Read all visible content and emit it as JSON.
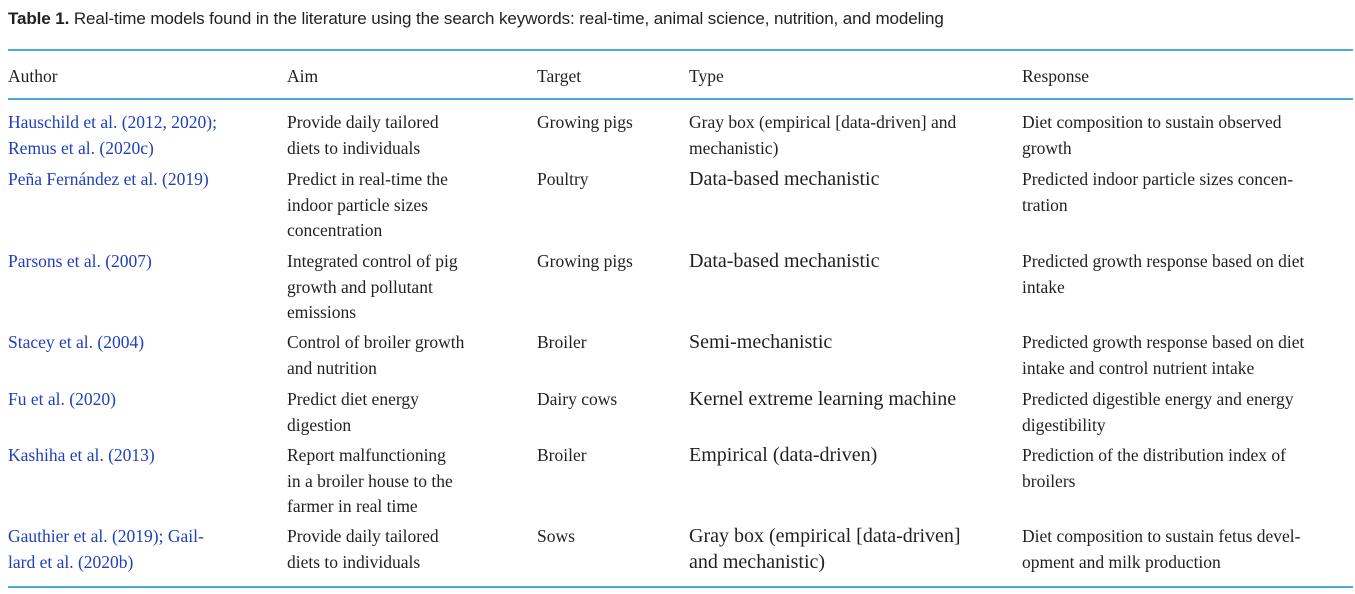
{
  "caption": {
    "label": "Table 1.",
    "text": "Real-time models found in the literature using the search keywords: real-time, animal science, nutrition, and modeling"
  },
  "headers": {
    "author": "Author",
    "aim": "Aim",
    "target": "Target",
    "type": "Type",
    "response": "Response"
  },
  "rows": [
    {
      "author_lines": [
        "Hauschild et al. (2012, 2020);",
        "Remus et al. (2020c)"
      ],
      "aim_lines": [
        "Provide daily tailored",
        "diets to individuals"
      ],
      "target": "Growing pigs",
      "type_lines": [
        "Gray box (empirical [data-driven] and",
        "mechanistic)"
      ],
      "response_lines": [
        "Diet composition to sustain observed",
        "growth"
      ]
    },
    {
      "author_lines": [
        "Peña Fernández et al. (2019)"
      ],
      "aim_lines": [
        "Predict in real-time the",
        "indoor particle sizes",
        "concentration"
      ],
      "target": "Poultry",
      "type_lines": [
        "Data-based mechanistic"
      ],
      "response_lines": [
        "Predicted indoor particle sizes concen-",
        "tration"
      ]
    },
    {
      "author_lines": [
        "Parsons et al. (2007)"
      ],
      "aim_lines": [
        "Integrated control of pig",
        "growth and pollutant",
        "emissions"
      ],
      "target": "Growing pigs",
      "type_lines": [
        "Data-based mechanistic"
      ],
      "response_lines": [
        "Predicted growth response based on diet",
        "intake"
      ]
    },
    {
      "author_lines": [
        "Stacey et al. (2004)"
      ],
      "aim_lines": [
        "Control of broiler growth",
        "and nutrition"
      ],
      "target": "Broiler",
      "type_lines": [
        "Semi-mechanistic"
      ],
      "response_lines": [
        "Predicted growth response based on diet",
        "intake and control nutrient intake"
      ]
    },
    {
      "author_lines": [
        "Fu et al. (2020)"
      ],
      "aim_lines": [
        "Predict diet energy",
        "digestion"
      ],
      "target": "Dairy cows",
      "type_lines": [
        "Kernel extreme learning machine"
      ],
      "response_lines": [
        "Predicted digestible energy and energy",
        "digestibility"
      ]
    },
    {
      "author_lines": [
        "Kashiha et al. (2013)"
      ],
      "aim_lines": [
        "Report malfunctioning",
        "in a broiler house to the",
        "farmer in real time"
      ],
      "target": "Broiler",
      "type_lines": [
        "Empirical (data-driven)"
      ],
      "response_lines": [
        "Prediction of the distribution index of",
        "broilers"
      ]
    },
    {
      "author_lines": [
        "Gauthier et al. (2019); Gail-",
        "lard et al. (2020b)"
      ],
      "aim_lines": [
        "Provide daily tailored",
        "diets to individuals"
      ],
      "target": "Sows",
      "type_lines": [
        "Gray box (empirical [data-driven]",
        "and mechanistic)"
      ],
      "response_lines": [
        "Diet composition to sustain fetus devel-",
        "opment and milk production"
      ]
    }
  ],
  "colors": {
    "rule": "#4aa8d2",
    "link": "#1f3fbf",
    "text": "#231f20"
  }
}
